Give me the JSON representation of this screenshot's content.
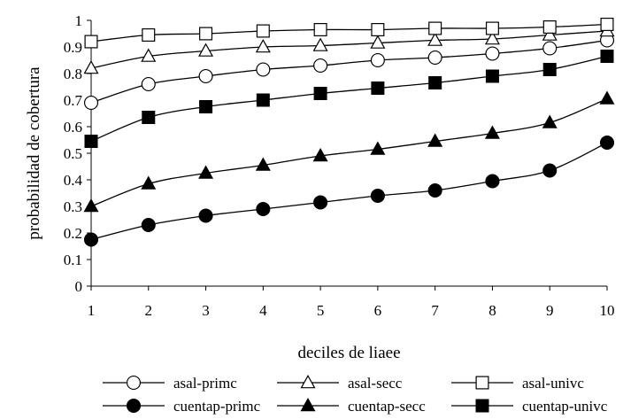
{
  "chart_data": {
    "type": "line",
    "xlabel": "deciles de liaee",
    "ylabel": "probabilidad de cobertura",
    "x": [
      1,
      2,
      3,
      4,
      5,
      6,
      7,
      8,
      9,
      10
    ],
    "xlim": [
      1,
      10
    ],
    "ylim": [
      0,
      1
    ],
    "y_ticks": [
      "0",
      "0.1",
      "0.2",
      "0.3",
      "0.4",
      "0.5",
      "0.6",
      "0.7",
      "0.8",
      "0.9",
      "1"
    ],
    "x_ticks": [
      "1",
      "2",
      "3",
      "4",
      "5",
      "6",
      "7",
      "8",
      "9",
      "10"
    ],
    "grid": false,
    "legend_position": "bottom",
    "series": [
      {
        "name": "asal-primc",
        "marker": "circle",
        "filled": false,
        "values": [
          0.69,
          0.76,
          0.79,
          0.815,
          0.83,
          0.85,
          0.86,
          0.875,
          0.895,
          0.925
        ]
      },
      {
        "name": "asal-secc",
        "marker": "triangle",
        "filled": false,
        "values": [
          0.82,
          0.865,
          0.885,
          0.9,
          0.905,
          0.915,
          0.925,
          0.93,
          0.945,
          0.96
        ]
      },
      {
        "name": "asal-univc",
        "marker": "square",
        "filled": false,
        "values": [
          0.92,
          0.945,
          0.95,
          0.96,
          0.965,
          0.965,
          0.97,
          0.97,
          0.975,
          0.985
        ]
      },
      {
        "name": "cuentap-primc",
        "marker": "circle",
        "filled": true,
        "values": [
          0.175,
          0.23,
          0.265,
          0.29,
          0.315,
          0.34,
          0.36,
          0.395,
          0.435,
          0.54
        ]
      },
      {
        "name": "cuentap-secc",
        "marker": "triangle",
        "filled": true,
        "values": [
          0.3,
          0.385,
          0.425,
          0.455,
          0.49,
          0.515,
          0.545,
          0.575,
          0.615,
          0.705
        ]
      },
      {
        "name": "cuentap-univc",
        "marker": "square",
        "filled": true,
        "values": [
          0.545,
          0.635,
          0.675,
          0.7,
          0.725,
          0.745,
          0.765,
          0.79,
          0.815,
          0.865
        ]
      }
    ]
  }
}
